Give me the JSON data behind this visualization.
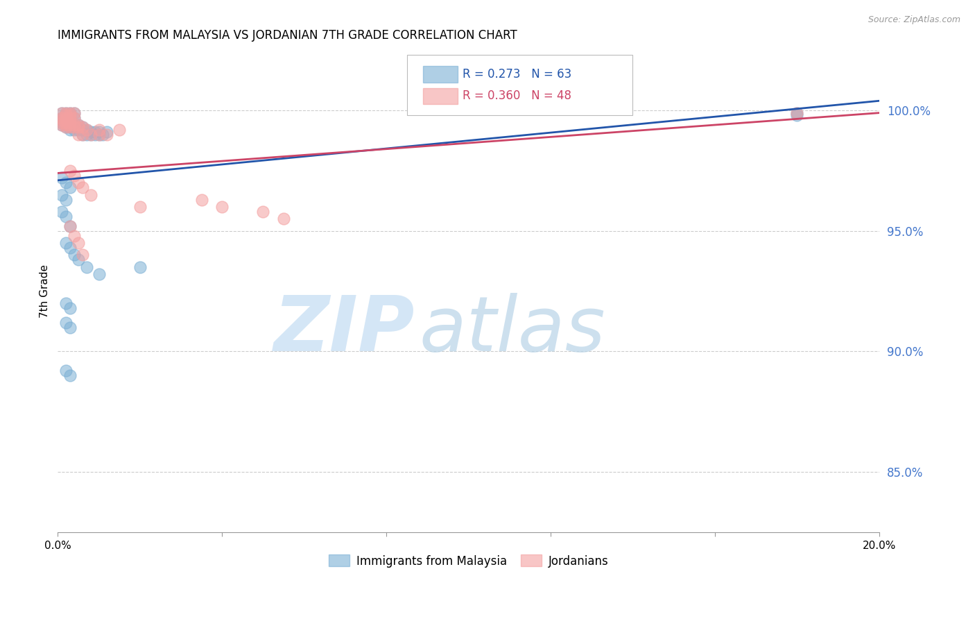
{
  "title": "IMMIGRANTS FROM MALAYSIA VS JORDANIAN 7TH GRADE CORRELATION CHART",
  "source": "Source: ZipAtlas.com",
  "ylabel": "7th Grade",
  "blue_color": "#7BAFD4",
  "pink_color": "#F4A0A0",
  "line_blue": "#2255AA",
  "line_pink": "#CC4466",
  "ytick_color": "#4477CC",
  "ylim": [
    0.825,
    1.025
  ],
  "xlim": [
    0.0,
    0.2
  ],
  "yticks": [
    1.0,
    0.95,
    0.9,
    0.85
  ],
  "ytick_labels": [
    "100.0%",
    "95.0%",
    "90.0%",
    "85.0%"
  ],
  "xtick_labels": [
    "0.0%",
    "",
    "",
    "",
    "",
    "20.0%"
  ],
  "xticks": [
    0.0,
    0.04,
    0.08,
    0.12,
    0.16,
    0.2
  ],
  "legend_r1_text": "R = 0.273   N = 63",
  "legend_r2_text": "R = 0.360   N = 48",
  "blue_x": [
    0.001,
    0.002,
    0.003,
    0.004,
    0.002,
    0.003,
    0.001,
    0.002,
    0.003,
    0.004,
    0.001,
    0.002,
    0.001,
    0.002,
    0.003,
    0.001,
    0.002,
    0.003,
    0.004,
    0.005,
    0.002,
    0.003,
    0.004,
    0.005,
    0.006,
    0.003,
    0.004,
    0.005,
    0.006,
    0.007,
    0.008,
    0.009,
    0.01,
    0.012,
    0.006,
    0.007,
    0.008,
    0.009,
    0.01,
    0.011,
    0.001,
    0.002,
    0.003,
    0.001,
    0.002,
    0.001,
    0.002,
    0.003,
    0.002,
    0.003,
    0.004,
    0.005,
    0.007,
    0.01,
    0.002,
    0.003,
    0.002,
    0.003,
    0.002,
    0.003,
    0.18,
    0.18,
    0.02
  ],
  "blue_y": [
    0.999,
    0.999,
    0.999,
    0.999,
    0.998,
    0.998,
    0.997,
    0.997,
    0.997,
    0.997,
    0.996,
    0.996,
    0.995,
    0.995,
    0.995,
    0.994,
    0.994,
    0.994,
    0.994,
    0.994,
    0.993,
    0.993,
    0.993,
    0.993,
    0.993,
    0.992,
    0.992,
    0.992,
    0.992,
    0.992,
    0.991,
    0.991,
    0.991,
    0.991,
    0.99,
    0.99,
    0.99,
    0.99,
    0.99,
    0.99,
    0.972,
    0.97,
    0.968,
    0.965,
    0.963,
    0.958,
    0.956,
    0.952,
    0.945,
    0.943,
    0.94,
    0.938,
    0.935,
    0.932,
    0.92,
    0.918,
    0.912,
    0.91,
    0.892,
    0.89,
    0.999,
    0.998,
    0.935
  ],
  "pink_x": [
    0.001,
    0.002,
    0.003,
    0.004,
    0.002,
    0.003,
    0.001,
    0.002,
    0.003,
    0.004,
    0.001,
    0.002,
    0.001,
    0.002,
    0.003,
    0.001,
    0.002,
    0.003,
    0.004,
    0.005,
    0.002,
    0.003,
    0.004,
    0.005,
    0.006,
    0.007,
    0.01,
    0.015,
    0.005,
    0.006,
    0.008,
    0.01,
    0.012,
    0.003,
    0.004,
    0.005,
    0.006,
    0.008,
    0.035,
    0.04,
    0.05,
    0.055,
    0.003,
    0.004,
    0.005,
    0.006,
    0.18,
    0.02
  ],
  "pink_y": [
    0.999,
    0.999,
    0.999,
    0.999,
    0.998,
    0.998,
    0.997,
    0.997,
    0.997,
    0.997,
    0.996,
    0.996,
    0.995,
    0.995,
    0.995,
    0.994,
    0.994,
    0.994,
    0.994,
    0.994,
    0.993,
    0.993,
    0.993,
    0.993,
    0.993,
    0.992,
    0.992,
    0.992,
    0.99,
    0.99,
    0.99,
    0.99,
    0.99,
    0.975,
    0.973,
    0.97,
    0.968,
    0.965,
    0.963,
    0.96,
    0.958,
    0.955,
    0.952,
    0.948,
    0.945,
    0.94,
    0.999,
    0.96
  ],
  "blue_line_x": [
    0.0,
    0.2
  ],
  "blue_line_y": [
    0.971,
    1.004
  ],
  "pink_line_x": [
    0.0,
    0.2
  ],
  "pink_line_y": [
    0.974,
    0.999
  ]
}
